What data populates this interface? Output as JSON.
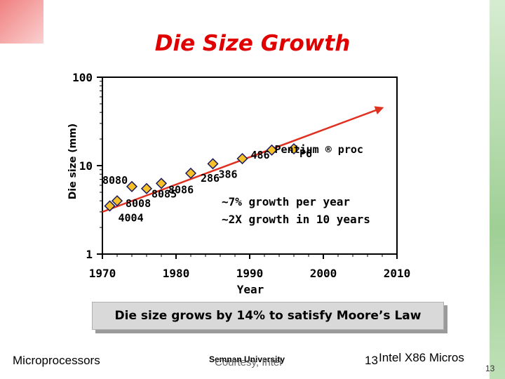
{
  "slide": {
    "title": "Die Size Growth",
    "banner": "Die size grows by 14% to satisfy Moore’s Law",
    "footer_left": "Microprocessors",
    "footer_mid_1": "Semnan University",
    "footer_mid_2": "Courtesy, Intel",
    "footer_num_1": "13",
    "footer_right": "Intel X86 Micros",
    "page_number": "13"
  },
  "colors": {
    "title": "#e00000",
    "marker_fill": "#f5c028",
    "marker_stroke": "#1a1a5e",
    "trend": "#e03020",
    "banner_bg": "#d9d9d9"
  },
  "chart_data": {
    "type": "scatter",
    "title": "",
    "xlabel": "Year",
    "ylabel": "Die size (mm)",
    "xlim": [
      1970,
      2010
    ],
    "ylim": [
      1,
      100
    ],
    "yscale": "log",
    "x_ticks": [
      "1970",
      "1980",
      "1990",
      "2000",
      "2010"
    ],
    "y_ticks": [
      "1",
      "10",
      "100"
    ],
    "grid": false,
    "points": [
      {
        "label": "4004",
        "x": 1971,
        "y": 3.5
      },
      {
        "label": "8008",
        "x": 1972,
        "y": 4.0
      },
      {
        "label": "8080",
        "x": 1974,
        "y": 5.8
      },
      {
        "label": "8085",
        "x": 1976,
        "y": 5.5
      },
      {
        "label": "8086",
        "x": 1978,
        "y": 6.3
      },
      {
        "label": "286",
        "x": 1982,
        "y": 8.2
      },
      {
        "label": "386",
        "x": 1985,
        "y": 10.5
      },
      {
        "label": "486",
        "x": 1989,
        "y": 12.0
      },
      {
        "label": "Pentium ® proc",
        "x": 1993,
        "y": 15.0
      },
      {
        "label": "P6",
        "x": 1996,
        "y": 15.5
      }
    ],
    "trend": {
      "x": [
        1970,
        2008
      ],
      "y": [
        3.0,
        45.0
      ]
    },
    "annotations": [
      "~7% growth per year",
      "~2X growth in 10 years"
    ]
  }
}
